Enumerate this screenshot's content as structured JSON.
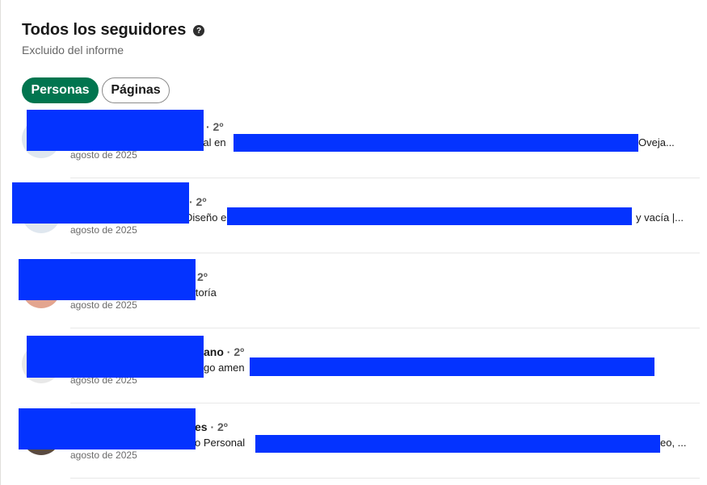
{
  "header": {
    "title": "Todos los seguidores",
    "help_icon": "help-circle-icon",
    "subtitle": "Excluido del informe"
  },
  "filters": [
    {
      "label": "Personas",
      "active": true
    },
    {
      "label": "Páginas",
      "active": false
    }
  ],
  "colors": {
    "active_pill": "#01754f",
    "redaction": "#0433ff"
  },
  "followers": [
    {
      "name_suffix": "",
      "degree": "· 2º",
      "headline_start": "cial en",
      "headline_end": "Oveja...",
      "date": "agosto de 2025"
    },
    {
      "name_suffix": "",
      "degree": "· 2º",
      "headline_start": "Diseño e",
      "headline_end": "y vacía |...",
      "date": "agosto de 2025"
    },
    {
      "name_suffix": "",
      "degree": "2º",
      "headline_start": "itoría",
      "headline_end": "",
      "date": "agosto de 2025"
    },
    {
      "name_suffix": "ano",
      "degree": "· 2º",
      "headline_start": "go amen",
      "headline_end": "",
      "date": "agosto de 2025"
    },
    {
      "name_suffix": "es",
      "degree": "· 2º",
      "headline_start": "o Personal",
      "headline_end": "eo, ...",
      "date": "agosto de 2025"
    }
  ]
}
